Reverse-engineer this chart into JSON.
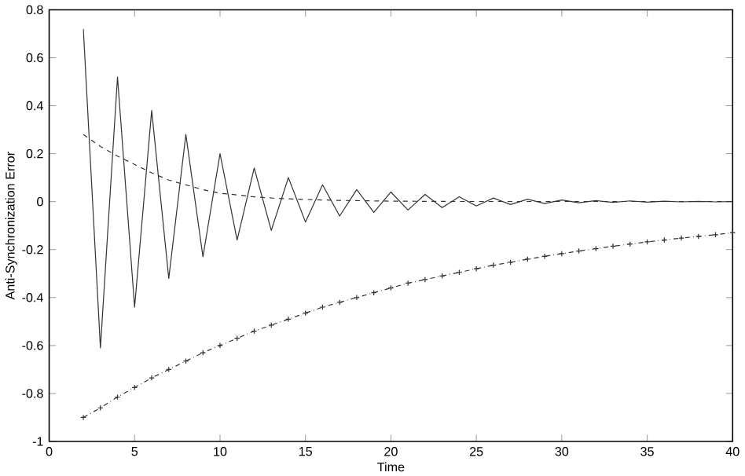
{
  "chart_data": {
    "type": "line",
    "xlabel": "Time",
    "ylabel": "Anti-Synchronization Error",
    "xlim": [
      0,
      40
    ],
    "ylim": [
      -1,
      0.8
    ],
    "xticks": [
      0,
      5,
      10,
      15,
      20,
      25,
      30,
      35,
      40
    ],
    "yticks": [
      -1,
      -0.8,
      -0.6,
      -0.4,
      -0.2,
      0,
      0.2,
      0.4,
      0.6,
      0.8
    ],
    "series": [
      {
        "color": "#333333",
        "line_style": "solid",
        "marker": "none",
        "x": [
          2,
          3,
          4,
          5,
          6,
          7,
          8,
          9,
          10,
          11,
          12,
          13,
          14,
          15,
          16,
          17,
          18,
          19,
          20,
          21,
          22,
          23,
          24,
          25,
          26,
          27,
          28,
          29,
          30,
          31,
          32,
          33,
          34,
          35,
          36,
          37,
          38,
          39,
          40
        ],
        "values": [
          0.72,
          -0.61,
          0.52,
          -0.44,
          0.38,
          -0.32,
          0.28,
          -0.23,
          0.2,
          -0.16,
          0.14,
          -0.12,
          0.1,
          -0.085,
          0.07,
          -0.06,
          0.05,
          -0.045,
          0.04,
          -0.035,
          0.03,
          -0.025,
          0.02,
          -0.018,
          0.015,
          -0.012,
          0.01,
          -0.008,
          0.007,
          -0.005,
          0.004,
          -0.003,
          0.003,
          -0.002,
          0.002,
          -0.001,
          0.001,
          -0.001,
          0
        ]
      },
      {
        "color": "#333333",
        "line_style": "dashed",
        "marker": "none",
        "x": [
          2,
          3,
          4,
          5,
          6,
          7,
          8,
          9,
          10,
          11,
          12,
          13,
          14,
          15,
          16,
          17,
          18,
          20,
          25,
          30,
          35,
          40
        ],
        "values": [
          0.28,
          0.23,
          0.19,
          0.155,
          0.12,
          0.09,
          0.07,
          0.05,
          0.035,
          0.028,
          0.02,
          0.015,
          0.012,
          0.009,
          0.007,
          0.005,
          0.004,
          0.002,
          0,
          0,
          0,
          0
        ]
      },
      {
        "color": "#333333",
        "line_style": "dotted",
        "marker": "cross",
        "x": [
          2,
          3,
          4,
          5,
          6,
          7,
          8,
          9,
          10,
          11,
          12,
          13,
          14,
          15,
          16,
          17,
          18,
          19,
          20,
          21,
          22,
          23,
          24,
          25,
          26,
          27,
          28,
          29,
          30,
          31,
          32,
          33,
          34,
          35,
          36,
          37,
          38,
          39,
          40
        ],
        "values": [
          -0.9,
          -0.86,
          -0.815,
          -0.775,
          -0.735,
          -0.7,
          -0.665,
          -0.63,
          -0.6,
          -0.57,
          -0.54,
          -0.515,
          -0.49,
          -0.465,
          -0.44,
          -0.42,
          -0.4,
          -0.38,
          -0.36,
          -0.34,
          -0.325,
          -0.31,
          -0.295,
          -0.28,
          -0.265,
          -0.253,
          -0.24,
          -0.228,
          -0.217,
          -0.206,
          -0.196,
          -0.186,
          -0.177,
          -0.168,
          -0.16,
          -0.152,
          -0.145,
          -0.138,
          -0.13
        ]
      }
    ]
  }
}
